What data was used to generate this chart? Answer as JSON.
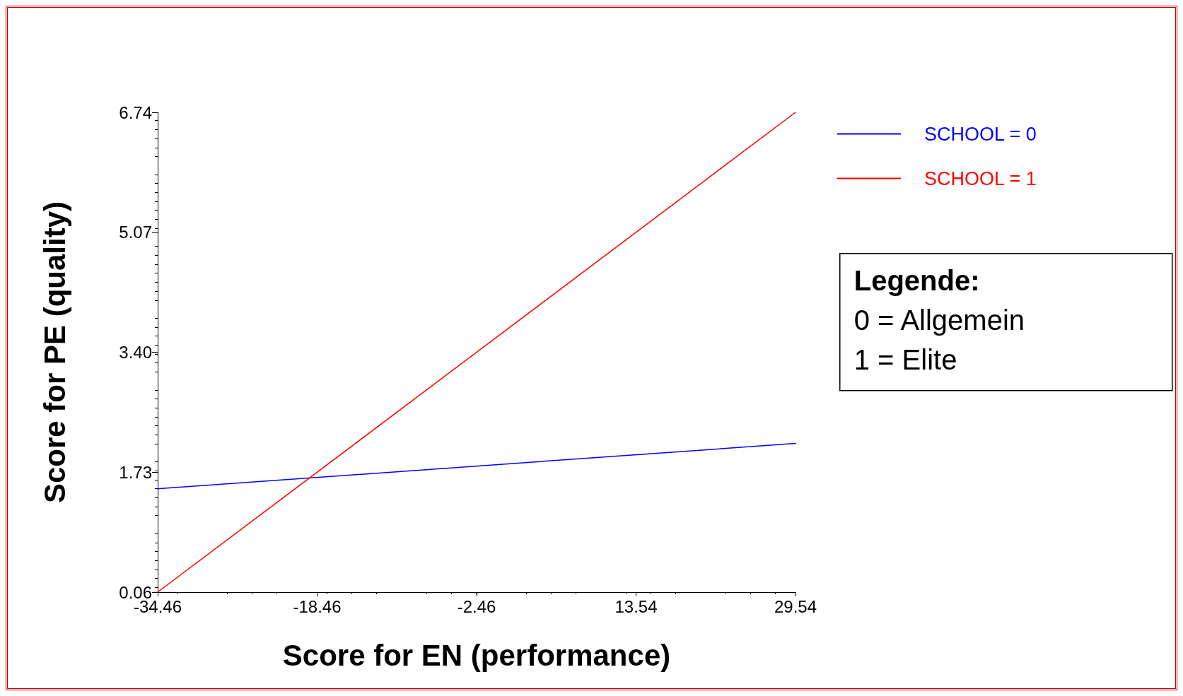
{
  "chart_data": {
    "type": "line",
    "xlabel": "Score for EN (performance)",
    "ylabel": "Score for PE (quality)",
    "x": [
      -34.46,
      29.54
    ],
    "series": [
      {
        "name": "SCHOOL = 0",
        "color": "#0000ff",
        "values": [
          1.5,
          2.13
        ]
      },
      {
        "name": "SCHOOL = 1",
        "color": "#ff0000",
        "values": [
          0.06,
          6.74
        ]
      }
    ],
    "xlim": [
      -34.46,
      29.54
    ],
    "xticks": [
      -34.46,
      -18.46,
      -2.46,
      13.54,
      29.54
    ],
    "ylim": [
      0.06,
      6.74
    ],
    "yticks": [
      0.06,
      1.73,
      {
        "value": 3.4,
        "label": "3.40"
      },
      5.07,
      6.74
    ],
    "grid": false,
    "legend": "top right",
    "marker": "none",
    "line_style": "solid",
    "annotations": [
      "Legende:",
      "0 = Allgemein",
      "1 = Elite"
    ]
  }
}
